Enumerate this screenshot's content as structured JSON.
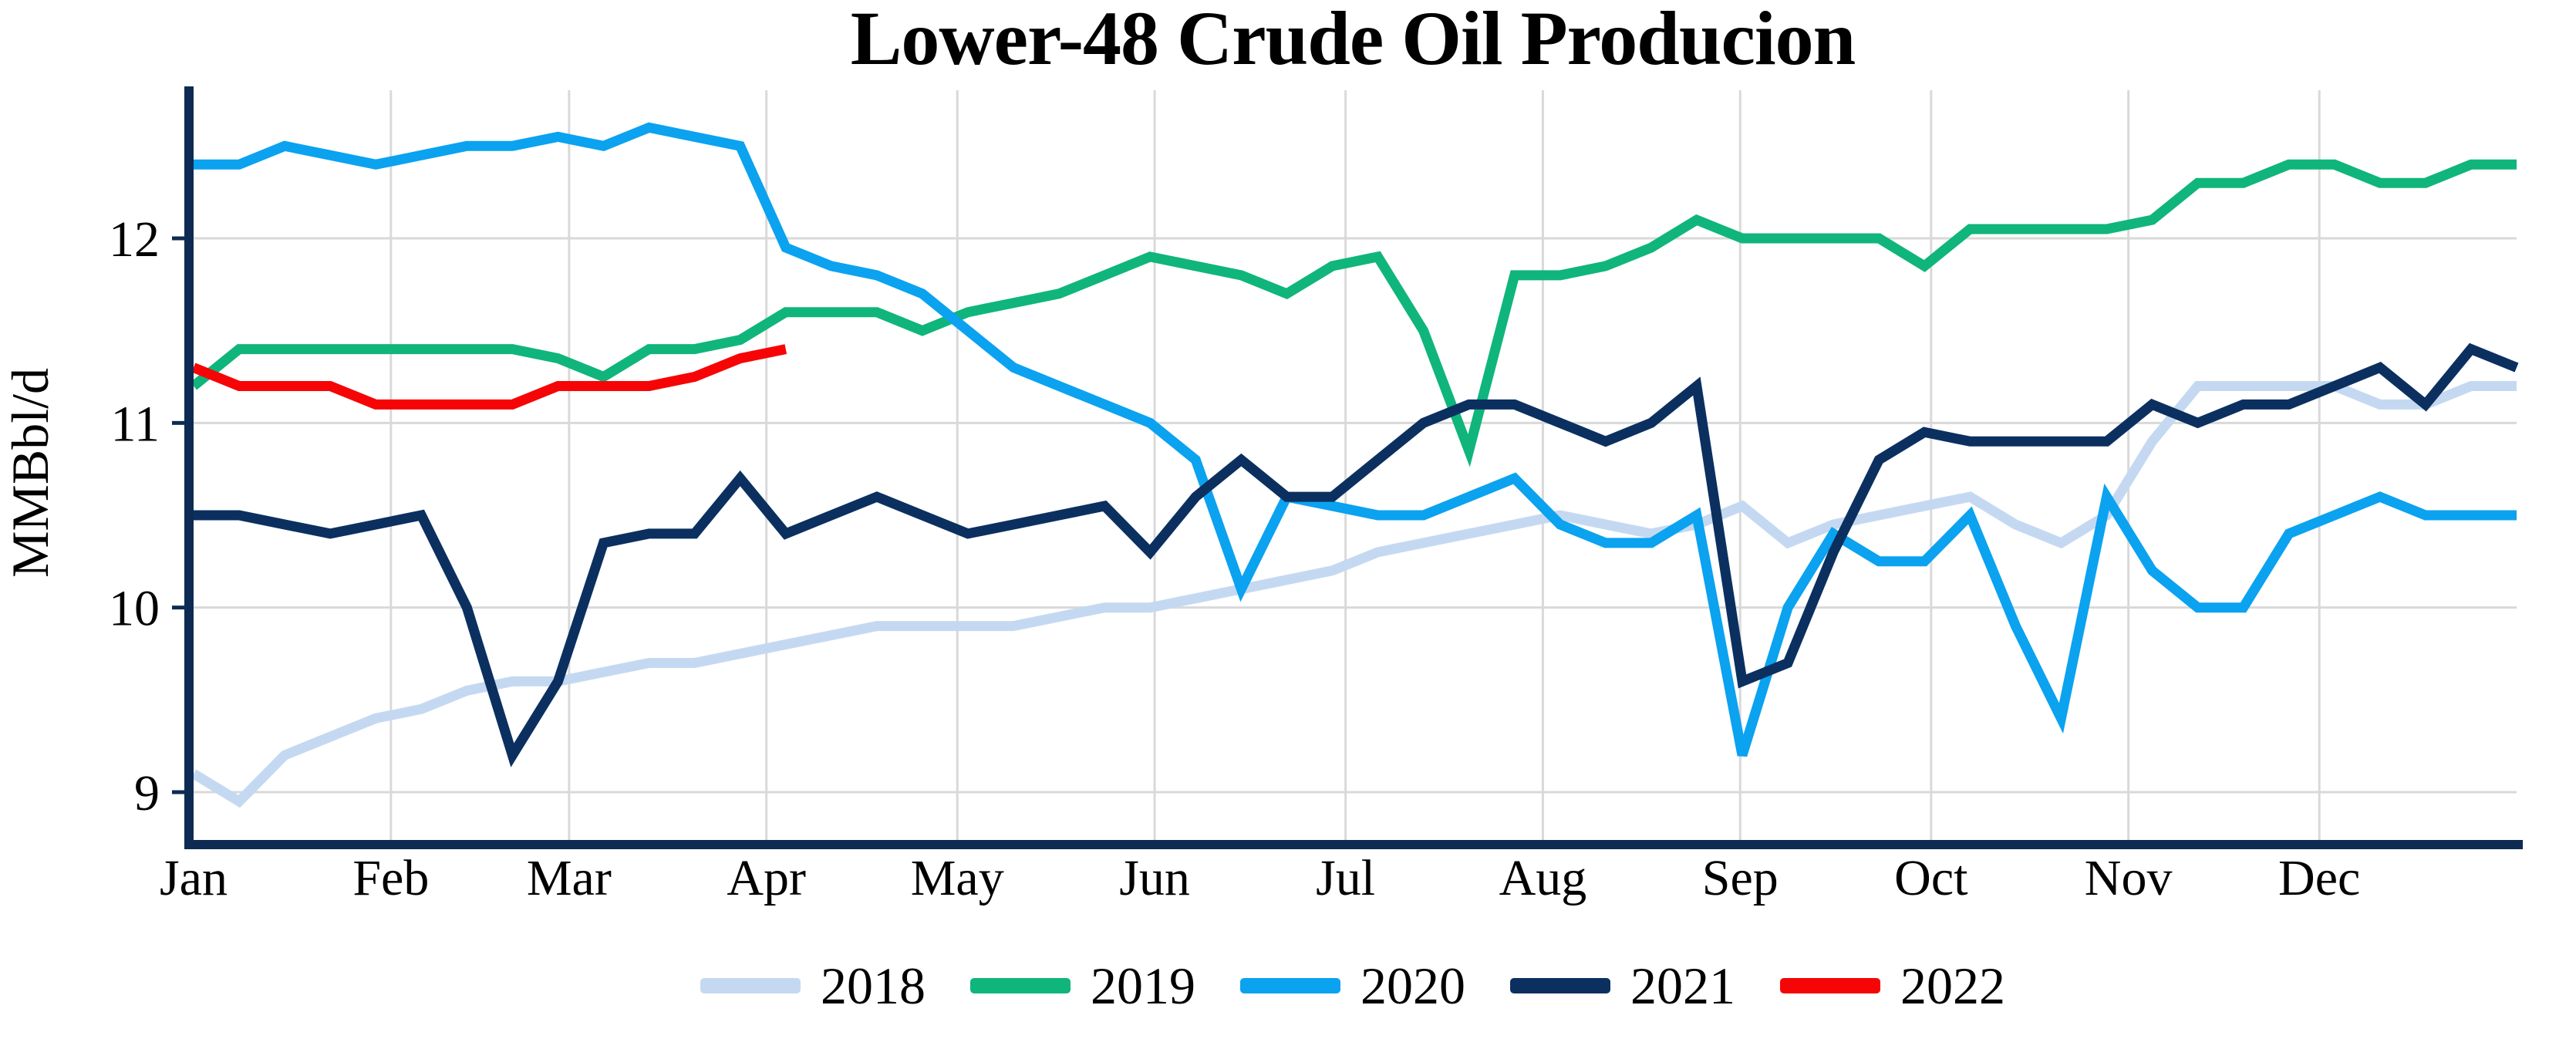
{
  "title": "Lower-48 Crude Oil Producion",
  "chart_data": {
    "type": "line",
    "title": "Lower-48 Crude Oil Producion",
    "xlabel": "",
    "ylabel": "MMBbl/d",
    "x_unit": "weekly (52 weeks, Jan-Dec)",
    "ylim": [
      8.7,
      12.8
    ],
    "y_tick_values": [
      12,
      11,
      10,
      9
    ],
    "y_tick_labels": [
      "12",
      "11",
      "10",
      "9"
    ],
    "x_tick_labels": [
      "Jan",
      "Feb",
      "Mar",
      "Apr",
      "May",
      "Jun",
      "Jul",
      "Aug",
      "Sep",
      "Oct",
      "Nov",
      "Dec"
    ],
    "month_start_day_of_year": [
      1,
      32,
      60,
      91,
      121,
      152,
      182,
      213,
      244,
      274,
      305,
      335
    ],
    "grid": "on",
    "gridline_color": "#d9d9d9",
    "axis_color": "#0d2b52",
    "background_color": "#ffffff",
    "legend_position": "bottom",
    "series": [
      {
        "name": "2018",
        "color": "#c4d9f1",
        "values": [
          9.1,
          8.95,
          9.2,
          9.3,
          9.4,
          9.45,
          9.55,
          9.6,
          9.6,
          9.65,
          9.7,
          9.7,
          9.75,
          9.8,
          9.85,
          9.9,
          9.9,
          9.9,
          9.9,
          9.95,
          10.0,
          10.0,
          10.05,
          10.1,
          10.15,
          10.2,
          10.3,
          10.35,
          10.4,
          10.45,
          10.5,
          10.45,
          10.4,
          10.45,
          10.55,
          10.35,
          10.45,
          10.5,
          10.55,
          10.6,
          10.45,
          10.35,
          10.5,
          10.9,
          11.2,
          11.2,
          11.2,
          11.2,
          11.1,
          11.1,
          11.2,
          11.2
        ]
      },
      {
        "name": "2019",
        "color": "#10b57c",
        "values": [
          11.2,
          11.4,
          11.4,
          11.4,
          11.4,
          11.4,
          11.4,
          11.4,
          11.35,
          11.25,
          11.4,
          11.4,
          11.45,
          11.6,
          11.6,
          11.6,
          11.5,
          11.6,
          11.65,
          11.7,
          11.8,
          11.9,
          11.85,
          11.8,
          11.7,
          11.85,
          11.9,
          11.5,
          10.85,
          11.8,
          11.8,
          11.85,
          11.95,
          12.1,
          12.0,
          12.0,
          12.0,
          12.0,
          11.85,
          12.05,
          12.05,
          12.05,
          12.05,
          12.1,
          12.3,
          12.3,
          12.4,
          12.4,
          12.3,
          12.3,
          12.4,
          12.4
        ]
      },
      {
        "name": "2020",
        "color": "#0ba2f0",
        "values": [
          12.4,
          12.4,
          12.5,
          12.45,
          12.4,
          12.45,
          12.5,
          12.5,
          12.55,
          12.5,
          12.6,
          12.55,
          12.5,
          11.95,
          11.85,
          11.8,
          11.7,
          11.5,
          11.3,
          11.2,
          11.1,
          11.0,
          10.8,
          10.1,
          10.6,
          10.55,
          10.5,
          10.5,
          10.6,
          10.7,
          10.45,
          10.35,
          10.35,
          10.5,
          9.2,
          10.0,
          10.4,
          10.25,
          10.25,
          10.5,
          9.9,
          9.4,
          10.6,
          10.2,
          10.0,
          10.0,
          10.4,
          10.5,
          10.6,
          10.5,
          10.5,
          10.5
        ]
      },
      {
        "name": "2021",
        "color": "#0b3060",
        "values": [
          10.5,
          10.5,
          10.45,
          10.4,
          10.45,
          10.5,
          10.0,
          9.2,
          9.6,
          10.35,
          10.4,
          10.4,
          10.7,
          10.4,
          10.5,
          10.6,
          10.5,
          10.4,
          10.45,
          10.5,
          10.55,
          10.3,
          10.6,
          10.8,
          10.6,
          10.6,
          10.8,
          11.0,
          11.1,
          11.1,
          11.0,
          10.9,
          11.0,
          11.2,
          9.6,
          9.7,
          10.3,
          10.8,
          10.95,
          10.9,
          10.9,
          10.9,
          10.9,
          11.1,
          11.0,
          11.1,
          11.1,
          11.2,
          11.3,
          11.1,
          11.4,
          11.3
        ]
      },
      {
        "name": "2022",
        "color": "#f60506",
        "values": [
          11.3,
          11.2,
          11.2,
          11.2,
          11.1,
          11.1,
          11.1,
          11.1,
          11.2,
          11.2,
          11.2,
          11.25,
          11.35,
          11.4
        ]
      }
    ]
  }
}
